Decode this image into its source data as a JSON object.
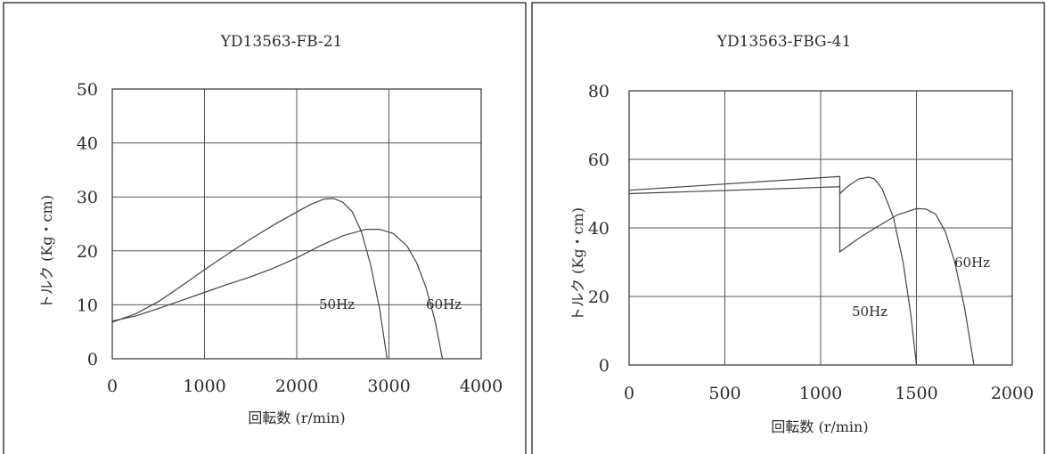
{
  "chart_data": [
    {
      "type": "line",
      "title": "YD13563-FB-21",
      "xlabel": "回転数 (r/min)",
      "ylabel": "トルク (Kg・cm)",
      "xlim": [
        0,
        4000
      ],
      "ylim": [
        0,
        50
      ],
      "x_ticks": [
        "0",
        "1000",
        "2000",
        "3000",
        "4000"
      ],
      "y_ticks": [
        "0",
        "10",
        "20",
        "30",
        "40",
        "50"
      ],
      "grid": true,
      "series": [
        {
          "name": "50Hz",
          "x": [
            0,
            250,
            500,
            750,
            1000,
            1250,
            1500,
            1750,
            2000,
            2150,
            2300,
            2400,
            2500,
            2600,
            2700,
            2800,
            2900,
            2980
          ],
          "y": [
            6.8,
            8.3,
            10.6,
            13.5,
            16.5,
            19.4,
            22.2,
            24.8,
            27.2,
            28.6,
            29.6,
            29.7,
            29.0,
            27.3,
            23.6,
            17.5,
            9.2,
            0
          ]
        },
        {
          "name": "60Hz",
          "x": [
            0,
            250,
            500,
            750,
            1000,
            1250,
            1500,
            1750,
            2000,
            2250,
            2500,
            2750,
            2900,
            3050,
            3200,
            3300,
            3400,
            3500,
            3580
          ],
          "y": [
            7.0,
            7.9,
            9.3,
            10.8,
            12.3,
            13.8,
            15.2,
            16.8,
            18.7,
            20.9,
            22.8,
            24.0,
            24.0,
            23.2,
            20.8,
            17.8,
            13.3,
            7.0,
            0
          ]
        }
      ],
      "annotations": [
        "50Hz",
        "60Hz"
      ]
    },
    {
      "type": "line",
      "title": "YD13563-FBG-41",
      "xlabel": "回転数 (r/min)",
      "ylabel": "トルク (Kg・cm)",
      "xlim": [
        0,
        2000
      ],
      "ylim": [
        0,
        80
      ],
      "x_ticks": [
        "0",
        "500",
        "1000",
        "1500",
        "2000"
      ],
      "y_ticks": [
        "0",
        "20",
        "40",
        "60",
        "80"
      ],
      "grid": true,
      "series": [
        {
          "name": "50Hz",
          "x": [
            0,
            1100,
            1100,
            1150,
            1200,
            1250,
            1280,
            1320,
            1380,
            1430,
            1470,
            1500
          ],
          "y": [
            51,
            55,
            50,
            52.5,
            54.3,
            54.8,
            54.3,
            51.5,
            43.0,
            30.0,
            15.0,
            0
          ]
        },
        {
          "name": "60Hz",
          "x": [
            0,
            1100,
            1100,
            1200,
            1300,
            1400,
            1500,
            1550,
            1600,
            1650,
            1700,
            1750,
            1800
          ],
          "y": [
            50,
            52,
            33,
            37,
            40.5,
            43.8,
            45.6,
            45.5,
            44.0,
            39.0,
            30.0,
            17.0,
            0
          ]
        }
      ],
      "annotations": [
        "50Hz",
        "60Hz"
      ]
    }
  ]
}
